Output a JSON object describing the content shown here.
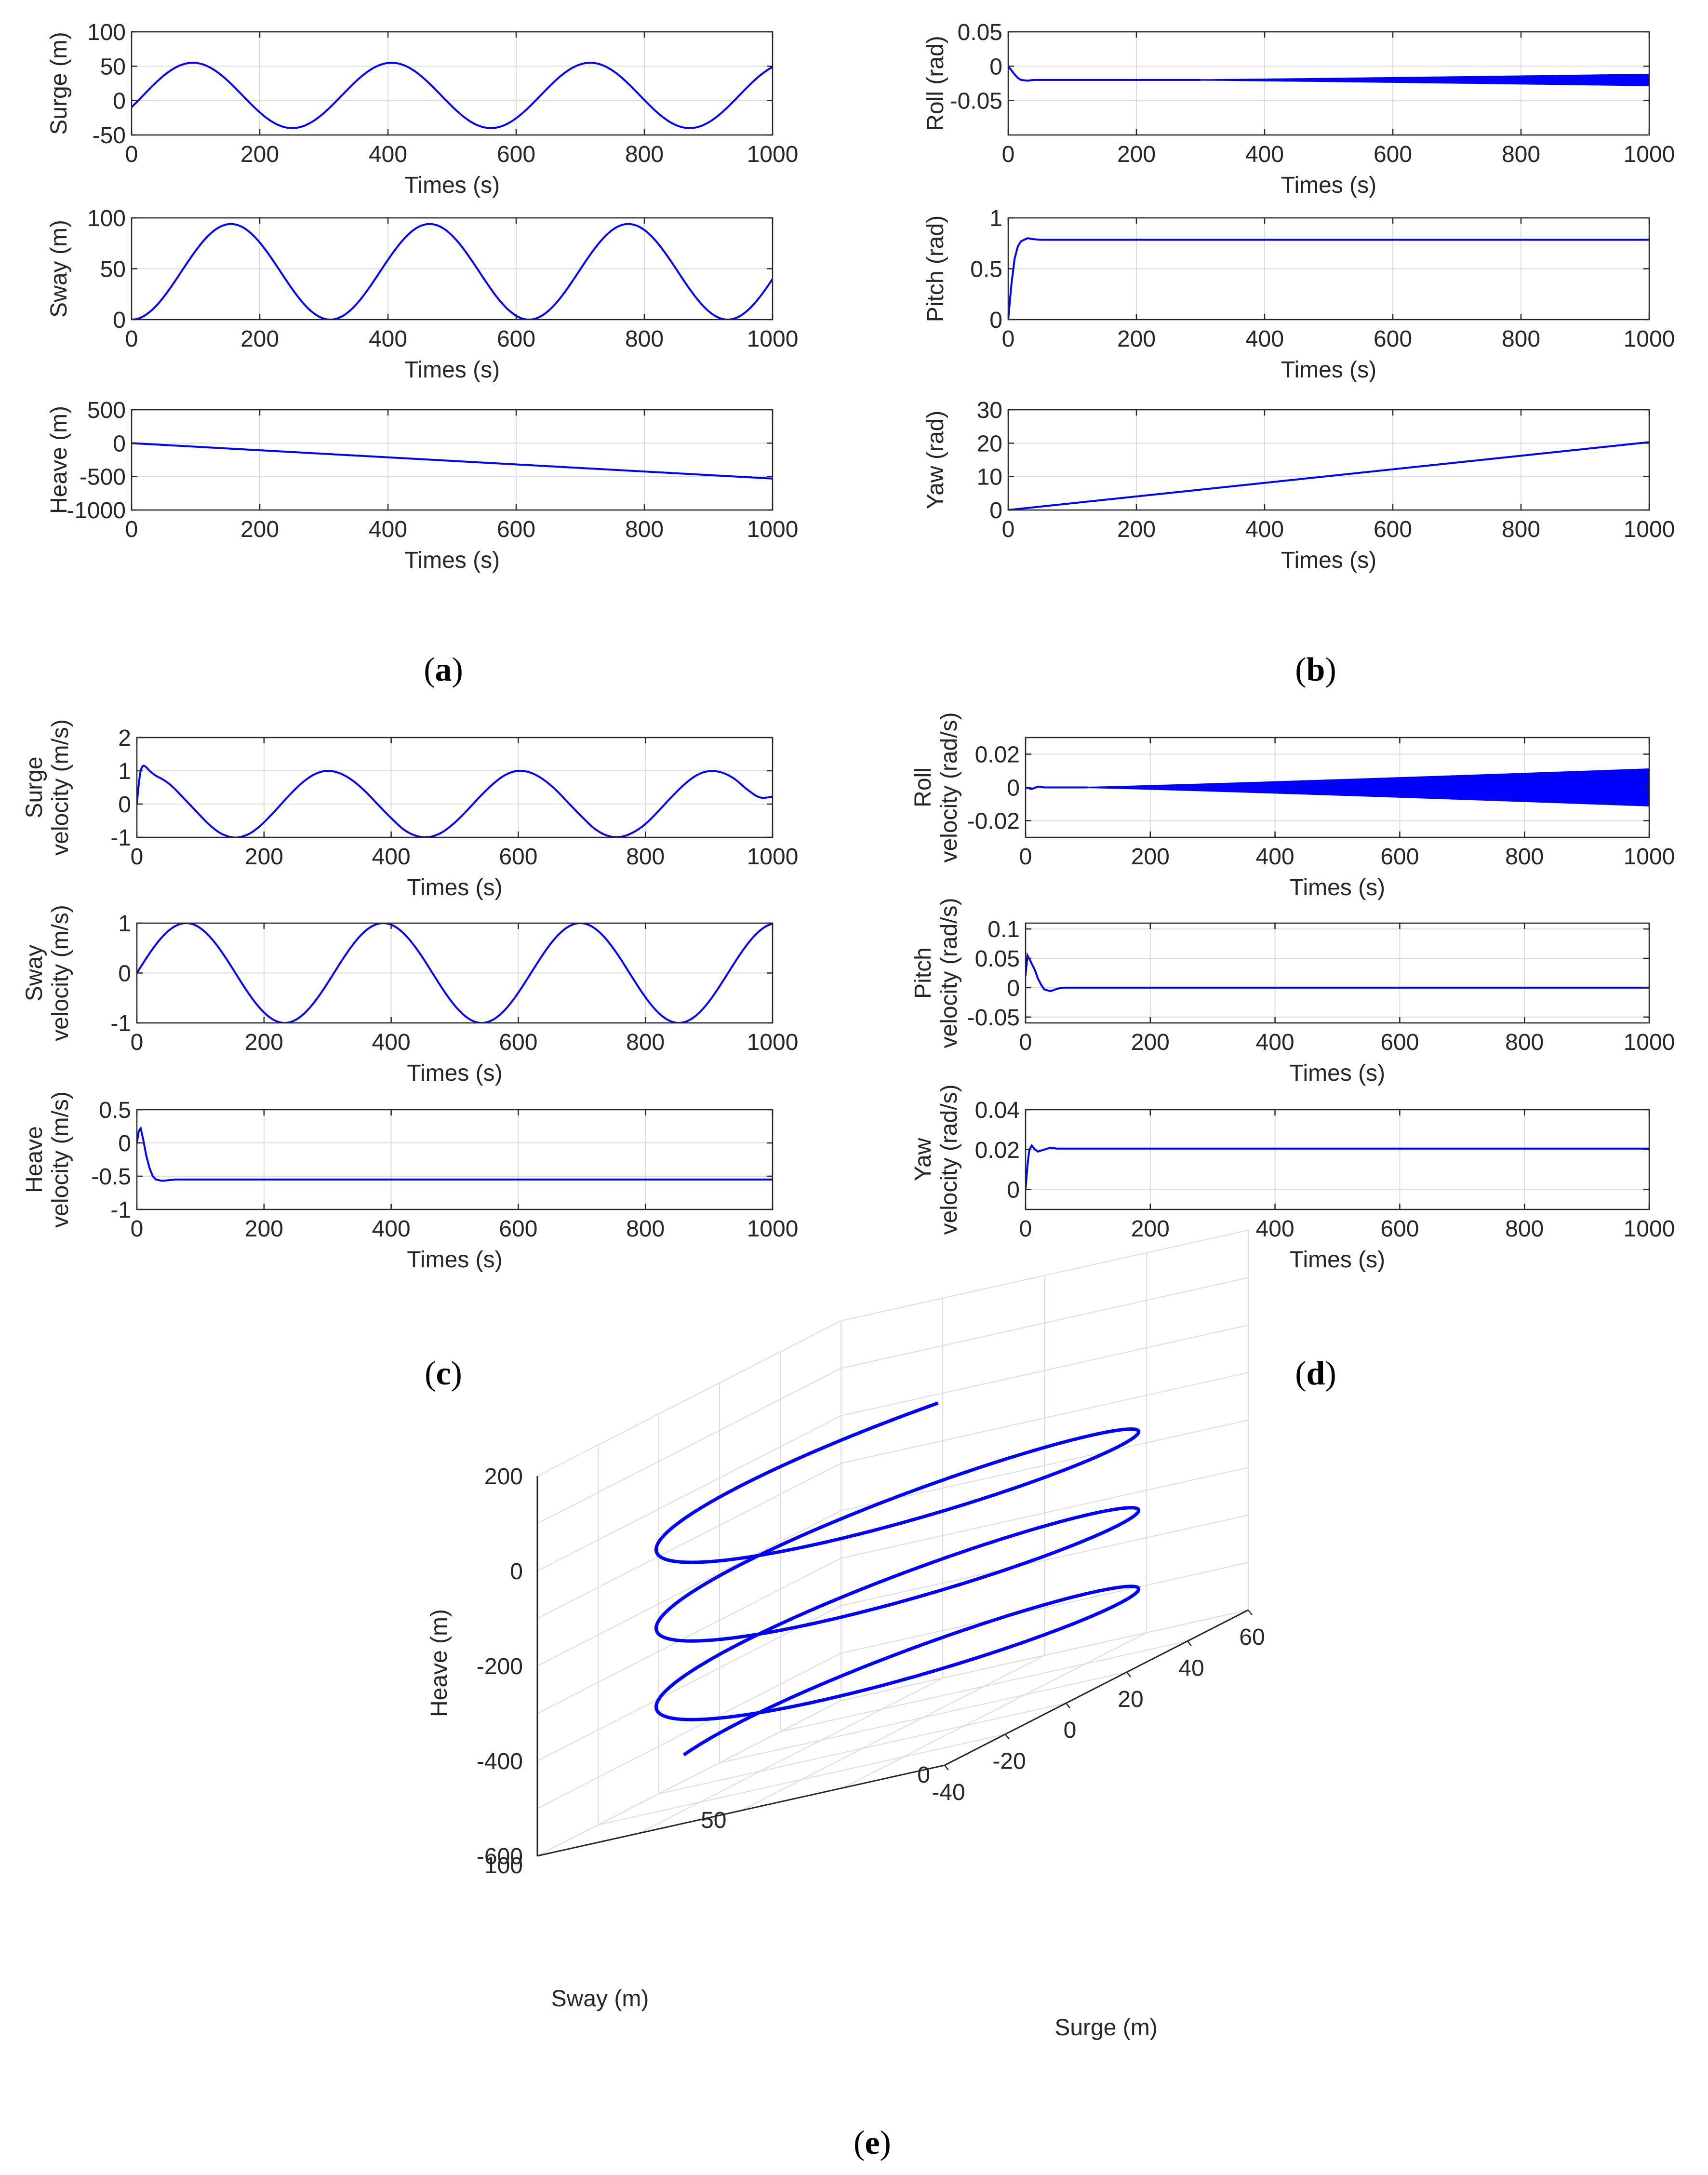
{
  "colors": {
    "line": "#0000ff",
    "grid": "#dcdcdc",
    "axis": "#262626"
  },
  "panels": [
    {
      "label_open": "(",
      "letter": "a",
      "label_close": ")"
    },
    {
      "label_open": "(",
      "letter": "b",
      "label_close": ")"
    },
    {
      "label_open": "(",
      "letter": "c",
      "label_close": ")"
    },
    {
      "label_open": "(",
      "letter": "d",
      "label_close": ")"
    },
    {
      "label_open": "(",
      "letter": "e",
      "label_close": ")"
    }
  ],
  "chart_data": [
    {
      "id": "a1",
      "type": "line",
      "title": "",
      "xlabel": "Times (s)",
      "ylabel": [
        "Surge (m)"
      ],
      "xlim": [
        0,
        1000
      ],
      "ylim": [
        -50,
        100
      ],
      "xticks": [
        0,
        200,
        400,
        600,
        800,
        1000
      ],
      "yticks": [
        -50,
        0,
        50,
        100
      ],
      "series": [
        {
          "name": "Surge",
          "kind": "sin",
          "amp": 47.5,
          "offset": 7.5,
          "period": 310,
          "phase_deg": -21
        }
      ]
    },
    {
      "id": "a2",
      "type": "line",
      "title": "",
      "xlabel": "Times (s)",
      "ylabel": [
        "Sway (m)"
      ],
      "xlim": [
        0,
        1000
      ],
      "ylim": [
        0,
        100
      ],
      "xticks": [
        0,
        200,
        400,
        600,
        800,
        1000
      ],
      "yticks": [
        0,
        50,
        100
      ],
      "series": [
        {
          "name": "Sway",
          "kind": "sin",
          "amp": 47,
          "offset": 47,
          "period": 310,
          "phase_deg": -90
        }
      ]
    },
    {
      "id": "a3",
      "type": "line",
      "title": "",
      "xlabel": "Times (s)",
      "ylabel": [
        "Heave (m)"
      ],
      "xlim": [
        0,
        1000
      ],
      "ylim": [
        -1000,
        500
      ],
      "xticks": [
        0,
        200,
        400,
        600,
        800,
        1000
      ],
      "yticks": [
        -1000,
        -500,
        0,
        500
      ],
      "series": [
        {
          "name": "Heave",
          "kind": "points",
          "x": [
            0,
            1000
          ],
          "y": [
            0,
            -530
          ]
        }
      ]
    },
    {
      "id": "b1",
      "type": "line",
      "title": "",
      "xlabel": "Times (s)",
      "ylabel": [
        "Roll (rad)"
      ],
      "xlim": [
        0,
        1000
      ],
      "ylim": [
        -0.1,
        0.05
      ],
      "xticks": [
        0,
        200,
        400,
        600,
        800,
        1000
      ],
      "yticks": [
        -0.05,
        0,
        0.05
      ],
      "series": [
        {
          "name": "Roll",
          "kind": "points",
          "x": [
            0,
            5,
            10,
            15,
            20,
            30,
            40,
            60,
            1000
          ],
          "y": [
            0,
            -0.006,
            -0.012,
            -0.017,
            -0.02,
            -0.021,
            -0.02,
            -0.02,
            -0.02
          ],
          "osc": {
            "start": 300,
            "end": 1000,
            "amp_end": 0.008,
            "cycles": 55
          }
        }
      ]
    },
    {
      "id": "b2",
      "type": "line",
      "title": "",
      "xlabel": "Times (s)",
      "ylabel": [
        "Pitch (rad)"
      ],
      "xlim": [
        0,
        1000
      ],
      "ylim": [
        0,
        1
      ],
      "xticks": [
        0,
        200,
        400,
        600,
        800,
        1000
      ],
      "yticks": [
        0,
        0.5,
        1
      ],
      "series": [
        {
          "name": "Pitch",
          "kind": "points",
          "x": [
            0,
            5,
            10,
            15,
            20,
            30,
            40,
            50,
            60,
            1000
          ],
          "y": [
            0,
            0.35,
            0.6,
            0.72,
            0.77,
            0.8,
            0.79,
            0.785,
            0.785,
            0.785
          ]
        }
      ]
    },
    {
      "id": "b3",
      "type": "line",
      "title": "",
      "xlabel": "Times (s)",
      "ylabel": [
        "Yaw (rad)"
      ],
      "xlim": [
        0,
        1000
      ],
      "ylim": [
        0,
        30
      ],
      "xticks": [
        0,
        200,
        400,
        600,
        800,
        1000
      ],
      "yticks": [
        0,
        10,
        20,
        30
      ],
      "series": [
        {
          "name": "Yaw",
          "kind": "points",
          "x": [
            0,
            1000
          ],
          "y": [
            0,
            20.3
          ]
        }
      ]
    },
    {
      "id": "c1",
      "type": "line",
      "title": "",
      "xlabel": "Times (s)",
      "ylabel": [
        "Surge",
        "velocity (m/s)"
      ],
      "xlim": [
        0,
        1000
      ],
      "ylim": [
        -1,
        2
      ],
      "xticks": [
        0,
        200,
        400,
        600,
        800,
        1000
      ],
      "yticks": [
        -1,
        0,
        1,
        2
      ],
      "series": [
        {
          "name": "Surge velocity",
          "kind": "points",
          "x": [
            0,
            3,
            6,
            10,
            15,
            20,
            30,
            40,
            50,
            60,
            70,
            80,
            90,
            100,
            110,
            120,
            130,
            140,
            150,
            160,
            170,
            180,
            190,
            200,
            220,
            240,
            260,
            280,
            300,
            320,
            340,
            360,
            380,
            400,
            420,
            440,
            460,
            480,
            500,
            520,
            540,
            560,
            580,
            600,
            620,
            640,
            660,
            680,
            700,
            720,
            740,
            760,
            780,
            800,
            820,
            840,
            860,
            880,
            900,
            920,
            940,
            960,
            980,
            1000
          ],
          "y": [
            0,
            0.6,
            1.0,
            1.15,
            1.1,
            1.0,
            0.85,
            0.75,
            0.62,
            0.45,
            0.25,
            0.05,
            -0.15,
            -0.35,
            -0.55,
            -0.72,
            -0.86,
            -0.95,
            -1.0,
            -1.0,
            -0.95,
            -0.86,
            -0.72,
            -0.55,
            -0.15,
            0.27,
            0.64,
            0.9,
            1.0,
            0.92,
            0.7,
            0.37,
            -0.03,
            -0.42,
            -0.77,
            -0.96,
            -0.99,
            -0.85,
            -0.56,
            -0.18,
            0.23,
            0.6,
            0.88,
            1.0,
            0.94,
            0.73,
            0.41,
            0.01,
            -0.38,
            -0.74,
            -0.95,
            -0.99,
            -0.86,
            -0.6,
            -0.22,
            0.19,
            0.57,
            0.86,
            0.99,
            0.95,
            0.76,
            0.44,
            0.2,
            0.22
          ]
        }
      ]
    },
    {
      "id": "c2",
      "type": "line",
      "title": "",
      "xlabel": "Times (s)",
      "ylabel": [
        "Sway",
        "velocity (m/s)"
      ],
      "xlim": [
        0,
        1000
      ],
      "ylim": [
        -1,
        1
      ],
      "xticks": [
        0,
        200,
        400,
        600,
        800,
        1000
      ],
      "yticks": [
        -1,
        0,
        1
      ],
      "series": [
        {
          "name": "Sway velocity",
          "kind": "sin",
          "amp": 1.0,
          "offset": 0,
          "period": 310,
          "phase_deg": 0
        }
      ]
    },
    {
      "id": "c3",
      "type": "line",
      "title": "",
      "xlabel": "Times (s)",
      "ylabel": [
        "Heave",
        "velocity (m/s)"
      ],
      "xlim": [
        0,
        1000
      ],
      "ylim": [
        -1,
        0.5
      ],
      "xticks": [
        0,
        200,
        400,
        600,
        800,
        1000
      ],
      "yticks": [
        -1,
        -0.5,
        0,
        0.5
      ],
      "series": [
        {
          "name": "Heave velocity",
          "kind": "points",
          "x": [
            0,
            3,
            6,
            10,
            15,
            20,
            25,
            30,
            40,
            50,
            60,
            80,
            1000
          ],
          "y": [
            0,
            0.18,
            0.22,
            0.05,
            -0.2,
            -0.38,
            -0.5,
            -0.55,
            -0.57,
            -0.56,
            -0.55,
            -0.55,
            -0.55
          ]
        }
      ]
    },
    {
      "id": "d1",
      "type": "line",
      "title": "",
      "xlabel": "Times (s)",
      "ylabel": [
        "Roll",
        "velocity (rad/s)"
      ],
      "xlim": [
        0,
        1000
      ],
      "ylim": [
        -0.03,
        0.03
      ],
      "xticks": [
        0,
        200,
        400,
        600,
        800,
        1000
      ],
      "yticks": [
        -0.02,
        0,
        0.02
      ],
      "series": [
        {
          "name": "Roll velocity",
          "kind": "points",
          "x": [
            0,
            10,
            20,
            30,
            1000
          ],
          "y": [
            0,
            -0.001,
            0.0005,
            0,
            0
          ],
          "osc": {
            "start": 100,
            "end": 1000,
            "amp_end": 0.011,
            "cycles": 80
          }
        }
      ]
    },
    {
      "id": "d2",
      "type": "line",
      "title": "",
      "xlabel": "Times (s)",
      "ylabel": [
        "Pitch",
        "velocity (rad/s)"
      ],
      "xlim": [
        0,
        1000
      ],
      "ylim": [
        -0.06,
        0.11
      ],
      "xticks": [
        0,
        200,
        400,
        600,
        800,
        1000
      ],
      "yticks": [
        -0.05,
        0,
        0.05,
        0.1
      ],
      "series": [
        {
          "name": "Pitch velocity",
          "kind": "points",
          "x": [
            0,
            3,
            8,
            15,
            20,
            25,
            30,
            40,
            50,
            60,
            1000
          ],
          "y": [
            0.02,
            0.055,
            0.045,
            0.03,
            0.015,
            0.005,
            -0.003,
            -0.006,
            -0.002,
            0,
            0
          ]
        }
      ]
    },
    {
      "id": "d3",
      "type": "line",
      "title": "",
      "xlabel": "Times (s)",
      "ylabel": [
        "Yaw",
        "velocity (rad/s)"
      ],
      "xlim": [
        0,
        1000
      ],
      "ylim": [
        -0.01,
        0.04
      ],
      "xticks": [
        0,
        200,
        400,
        600,
        800,
        1000
      ],
      "yticks": [
        0,
        0.02,
        0.04
      ],
      "series": [
        {
          "name": "Yaw velocity",
          "kind": "points",
          "x": [
            0,
            3,
            6,
            10,
            15,
            20,
            30,
            40,
            50,
            60,
            1000
          ],
          "y": [
            0,
            0.012,
            0.02,
            0.022,
            0.02,
            0.019,
            0.02,
            0.021,
            0.0205,
            0.0205,
            0.0205
          ]
        }
      ]
    },
    {
      "id": "e",
      "type": "line3d",
      "title": "",
      "xlabel": "Surge (m)",
      "ylabel": "Sway (m)",
      "zlabel": "Heave (m)",
      "xlim": [
        -40,
        60
      ],
      "ylim": [
        0,
        100
      ],
      "zlim": [
        -600,
        200
      ],
      "xticks": [
        -40,
        -20,
        0,
        20,
        40,
        60
      ],
      "yticks": [
        0,
        50,
        100
      ],
      "zticks": [
        -600,
        -400,
        -200,
        0,
        200
      ],
      "series": [
        {
          "name": "Trajectory",
          "kind": "helix",
          "center_x": 7.5,
          "center_y": 47,
          "radius": 47.5,
          "turns": 3.2,
          "z_start": 0,
          "z_end": -530
        }
      ]
    }
  ]
}
